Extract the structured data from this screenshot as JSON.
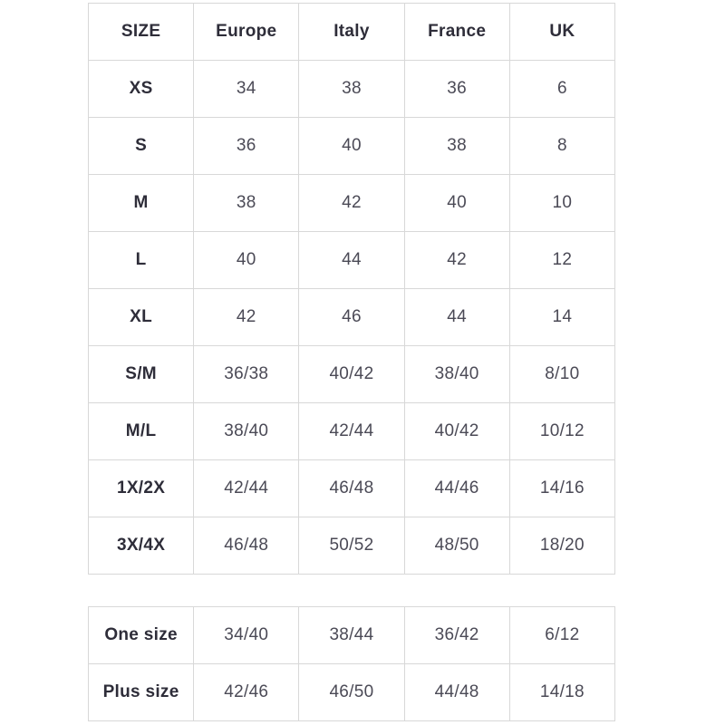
{
  "colors": {
    "background": "#ffffff",
    "border": "#d8d8d8",
    "header_text": "#2e2d39",
    "cell_text": "#4b4a56"
  },
  "chart_data": {
    "type": "table",
    "title": "",
    "columns": [
      "SIZE",
      "Europe",
      "Italy",
      "France",
      "UK"
    ],
    "rows": [
      [
        "XS",
        "34",
        "38",
        "36",
        "6"
      ],
      [
        "S",
        "36",
        "40",
        "38",
        "8"
      ],
      [
        "M",
        "38",
        "42",
        "40",
        "10"
      ],
      [
        "L",
        "40",
        "44",
        "42",
        "12"
      ],
      [
        "XL",
        "42",
        "46",
        "44",
        "14"
      ],
      [
        "S/M",
        "36/38",
        "40/42",
        "38/40",
        "8/10"
      ],
      [
        "M/L",
        "38/40",
        "42/44",
        "40/42",
        "10/12"
      ],
      [
        "1X/2X",
        "42/44",
        "46/48",
        "44/46",
        "14/16"
      ],
      [
        "3X/4X",
        "46/48",
        "50/52",
        "48/50",
        "18/20"
      ]
    ],
    "secondary_rows": [
      [
        "One size",
        "34/40",
        "38/44",
        "36/42",
        "6/12"
      ],
      [
        "Plus size",
        "42/46",
        "46/50",
        "44/48",
        "14/18"
      ]
    ],
    "layout": {
      "grid": true,
      "header_row": true,
      "secondary_table_has_header": false
    }
  }
}
